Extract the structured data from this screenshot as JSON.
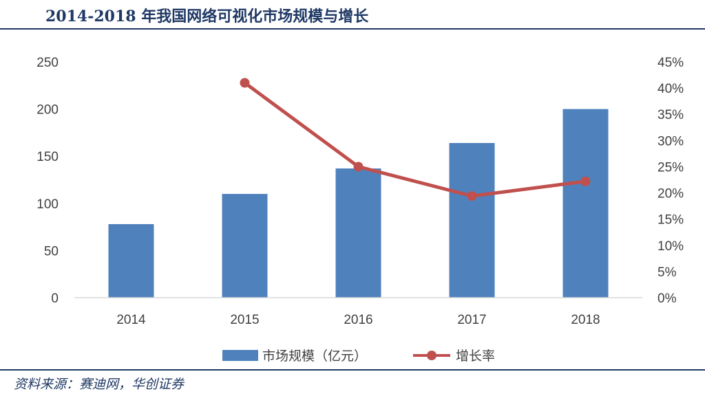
{
  "title": "2014-2018 年我国网络可视化市场规模与增长",
  "source": "资料来源：赛迪网，华创证券",
  "colors": {
    "bar": "#4f81bd",
    "line": "#c0504d",
    "accent": "#1f3864"
  },
  "chart_data": {
    "type": "bar",
    "categories": [
      "2014",
      "2015",
      "2016",
      "2017",
      "2018"
    ],
    "series": [
      {
        "name": "市场规模（亿元）",
        "type": "bar",
        "axis": "left",
        "values": [
          78,
          110,
          137,
          164,
          200
        ]
      },
      {
        "name": "增长率",
        "type": "line",
        "axis": "right",
        "values": [
          null,
          0.41,
          0.25,
          0.194,
          0.222
        ]
      }
    ],
    "y_left": {
      "ylim": [
        0,
        250
      ],
      "ticks": [
        "0",
        "50",
        "100",
        "150",
        "200",
        "250"
      ]
    },
    "y_right": {
      "ylim": [
        0,
        0.45
      ],
      "ticks": [
        "0%",
        "5%",
        "10%",
        "15%",
        "20%",
        "25%",
        "30%",
        "35%",
        "40%",
        "45%"
      ]
    },
    "grid": false,
    "legend_position": "bottom"
  }
}
